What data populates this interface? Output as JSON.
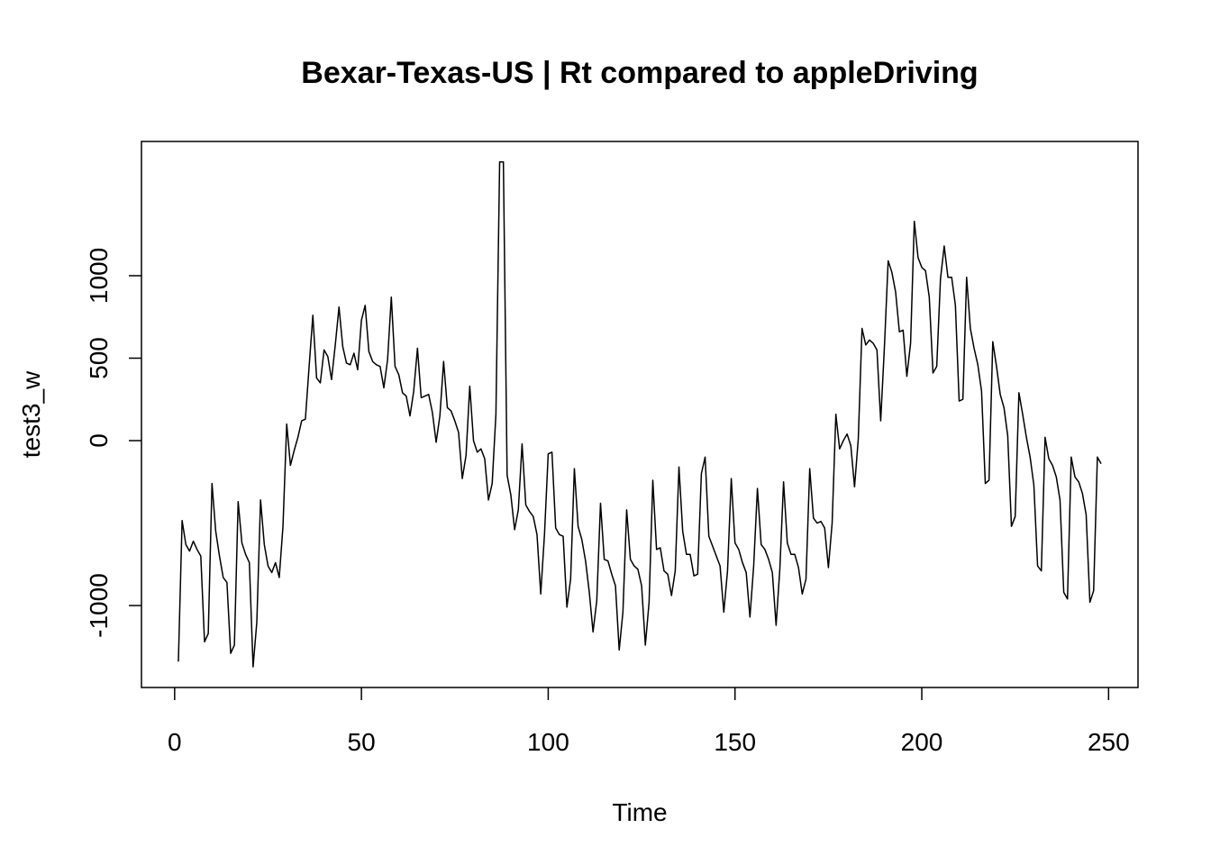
{
  "chart_data": {
    "type": "line",
    "title": "Bexar-Texas-US | Rt compared to appleDriving",
    "x_label": "Time",
    "y_label": "test3_w",
    "x": [
      1,
      2,
      3,
      4,
      5,
      6,
      7,
      8,
      9,
      10,
      11,
      12,
      13,
      14,
      15,
      16,
      17,
      18,
      19,
      20,
      21,
      22,
      23,
      24,
      25,
      26,
      27,
      28,
      29,
      30,
      31,
      32,
      33,
      34,
      35,
      36,
      37,
      38,
      39,
      40,
      41,
      42,
      43,
      44,
      45,
      46,
      47,
      48,
      49,
      50,
      51,
      52,
      53,
      54,
      55,
      56,
      57,
      58,
      59,
      60,
      61,
      62,
      63,
      64,
      65,
      66,
      67,
      68,
      69,
      70,
      71,
      72,
      73,
      74,
      75,
      76,
      77,
      78,
      79,
      80,
      81,
      82,
      83,
      84,
      85,
      86,
      87,
      88,
      89,
      90,
      91,
      92,
      93,
      94,
      95,
      96,
      97,
      98,
      99,
      100,
      101,
      102,
      103,
      104,
      105,
      106,
      107,
      108,
      109,
      110,
      111,
      112,
      113,
      114,
      115,
      116,
      117,
      118,
      119,
      120,
      121,
      122,
      123,
      124,
      125,
      126,
      127,
      128,
      129,
      130,
      131,
      132,
      133,
      134,
      135,
      136,
      137,
      138,
      139,
      140,
      141,
      142,
      143,
      144,
      145,
      146,
      147,
      148,
      149,
      150,
      151,
      152,
      153,
      154,
      155,
      156,
      157,
      158,
      159,
      160,
      161,
      162,
      163,
      164,
      165,
      166,
      167,
      168,
      169,
      170,
      171,
      172,
      173,
      174,
      175,
      176,
      177,
      178,
      179,
      180,
      181,
      182,
      183,
      184,
      185,
      186,
      187,
      188,
      189,
      190,
      191,
      192,
      193,
      194,
      195,
      196,
      197,
      198,
      199,
      200,
      201,
      202,
      203,
      204,
      205,
      206,
      207,
      208,
      209,
      210,
      211,
      212,
      213,
      214,
      215,
      216,
      217,
      218,
      219,
      220,
      221,
      222,
      223,
      224,
      225,
      226,
      227,
      228,
      229,
      230,
      231,
      232,
      233,
      234,
      235,
      236,
      237,
      238,
      239,
      240,
      241,
      242,
      243,
      244,
      245,
      246,
      247,
      248
    ],
    "series": [
      {
        "color": "#000000",
        "values": [
          -1340,
          -485,
          -630,
          -670,
          -610,
          -660,
          -700,
          -1220,
          -1170,
          -260,
          -550,
          -700,
          -830,
          -860,
          -1290,
          -1240,
          -370,
          -620,
          -690,
          -740,
          -1372,
          -1100,
          -360,
          -630,
          -760,
          -800,
          -740,
          -830,
          -520,
          100,
          -150,
          -60,
          20,
          120,
          130,
          450,
          760,
          380,
          350,
          550,
          510,
          370,
          580,
          810,
          570,
          470,
          460,
          530,
          430,
          730,
          820,
          540,
          480,
          460,
          450,
          320,
          490,
          870,
          450,
          400,
          290,
          270,
          150,
          300,
          560,
          260,
          270,
          280,
          170,
          -10,
          150,
          480,
          200,
          180,
          120,
          50,
          -230,
          -90,
          330,
          0,
          -70,
          -50,
          -110,
          -360,
          -260,
          160,
          1690,
          1690,
          -210,
          -330,
          -540,
          -420,
          -20,
          -390,
          -430,
          -460,
          -570,
          -930,
          -570,
          -80,
          -70,
          -530,
          -570,
          -580,
          -1010,
          -840,
          -170,
          -520,
          -600,
          -730,
          -920,
          -1160,
          -970,
          -380,
          -720,
          -730,
          -810,
          -880,
          -1270,
          -1040,
          -420,
          -720,
          -760,
          -780,
          -880,
          -1240,
          -980,
          -240,
          -660,
          -650,
          -790,
          -810,
          -940,
          -790,
          -160,
          -550,
          -690,
          -690,
          -820,
          -810,
          -200,
          -100,
          -580,
          -640,
          -700,
          -760,
          -1040,
          -790,
          -230,
          -620,
          -660,
          -740,
          -800,
          -1070,
          -760,
          -290,
          -630,
          -660,
          -720,
          -800,
          -1120,
          -780,
          -250,
          -620,
          -690,
          -690,
          -770,
          -930,
          -840,
          -170,
          -470,
          -500,
          -490,
          -530,
          -770,
          -500,
          160,
          -50,
          0,
          40,
          -30,
          -280,
          10,
          680,
          580,
          610,
          590,
          550,
          120,
          570,
          1090,
          1020,
          900,
          660,
          670,
          390,
          590,
          1330,
          1110,
          1050,
          1030,
          870,
          410,
          450,
          980,
          1180,
          990,
          990,
          820,
          240,
          250,
          990,
          680,
          560,
          460,
          300,
          -260,
          -240,
          600,
          450,
          280,
          200,
          30,
          -520,
          -460,
          290,
          160,
          20,
          -100,
          -270,
          -760,
          -790,
          20,
          -110,
          -150,
          -220,
          -360,
          -920,
          -960,
          -100,
          -220,
          -250,
          -320,
          -450,
          -980,
          -910,
          -100,
          -140
        ]
      }
    ],
    "xlim": [
      -8.88,
      257.88
    ],
    "ylim": [
      -1497,
      1814
    ],
    "xticks": [
      0,
      50,
      100,
      150,
      200,
      250
    ],
    "yticks": [
      -1000,
      0,
      500,
      1000
    ]
  }
}
